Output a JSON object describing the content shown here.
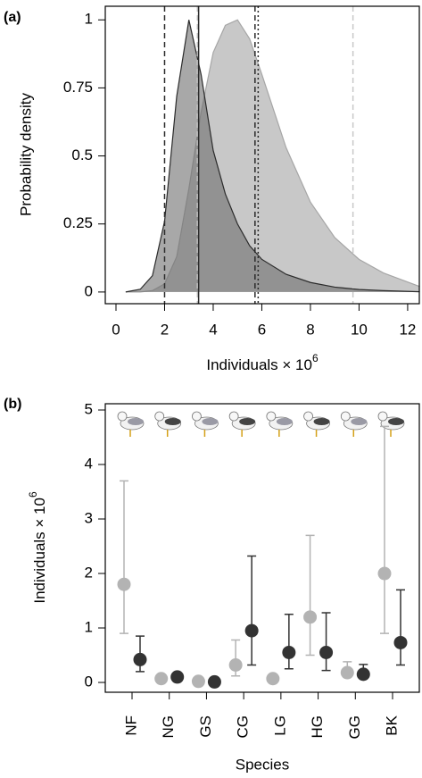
{
  "chart_data": [
    {
      "type": "area",
      "panel_label": "(a)",
      "y_label": "Probability density",
      "x_label": "Individuals × 10",
      "x_label_exponent": "6",
      "x": [
        0.4,
        1,
        1.5,
        2,
        2.5,
        3,
        3.5,
        4,
        4.5,
        5,
        5.5,
        6,
        7,
        8,
        9,
        10,
        11,
        12.5
      ],
      "series": [
        {
          "color": "#c8c8c8",
          "line_color": "#a6a6a6",
          "values": [
            0,
            0,
            0.005,
            0.03,
            0.13,
            0.38,
            0.66,
            0.88,
            0.98,
            1.0,
            0.93,
            0.8,
            0.53,
            0.33,
            0.2,
            0.12,
            0.07,
            0.02
          ]
        },
        {
          "color": "#6e6e6e",
          "line_color": "#2b2b2b",
          "values": [
            0,
            0.01,
            0.06,
            0.26,
            0.72,
            1.0,
            0.8,
            0.52,
            0.36,
            0.25,
            0.17,
            0.12,
            0.065,
            0.035,
            0.018,
            0.009,
            0.005,
            0.001
          ]
        }
      ],
      "reference_lines": [
        {
          "x": 3.35,
          "color": "#c8c8c8",
          "dash": "dashed"
        },
        {
          "x": 9.75,
          "color": "#c8c8c8",
          "dash": "dashed"
        },
        {
          "x": 5.85,
          "color": "#2b2b2b",
          "dash": "dotted"
        },
        {
          "x": 2.0,
          "color": "#2b2b2b",
          "dash": "dashed"
        },
        {
          "x": 3.4,
          "color": "#2b2b2b",
          "dash": "solid"
        },
        {
          "x": 5.72,
          "color": "#2b2b2b",
          "dash": "dashed"
        }
      ],
      "xlim": [
        -0.44,
        12.48
      ],
      "xticks": [
        0,
        2,
        4,
        6,
        8,
        10,
        12
      ],
      "ylim": [
        -0.043,
        1.05
      ],
      "yticks": [
        0,
        0.25,
        0.5,
        0.75,
        1
      ]
    },
    {
      "type": "errorbar",
      "panel_label": "(b)",
      "y_label": "Individuals × 10",
      "y_label_exponent": "6",
      "x_label": "Species",
      "categories": [
        "NF",
        "NG",
        "GS",
        "CG",
        "LG",
        "HG",
        "GG",
        "BK"
      ],
      "series": [
        {
          "color": "#b3b3b3",
          "values": [
            1.8,
            0.07,
            0.02,
            0.32,
            0.07,
            1.2,
            0.18,
            2.0
          ],
          "lower": [
            0.9,
            0.05,
            0.01,
            0.12,
            0.05,
            0.5,
            0.1,
            0.9
          ],
          "upper": [
            3.7,
            0.1,
            0.03,
            0.78,
            0.1,
            2.7,
            0.38,
            4.7
          ]
        },
        {
          "color": "#333333",
          "values": [
            0.42,
            0.1,
            0.01,
            0.95,
            0.55,
            0.55,
            0.15,
            0.73
          ],
          "lower": [
            0.2,
            0.06,
            0.005,
            0.32,
            0.25,
            0.22,
            0.08,
            0.32
          ],
          "upper": [
            0.85,
            0.15,
            0.02,
            2.32,
            1.25,
            1.28,
            0.33,
            1.7
          ]
        }
      ],
      "ylim": [
        -0.18,
        5.115
      ],
      "yticks": [
        0,
        1,
        2,
        3,
        4,
        5
      ]
    }
  ]
}
